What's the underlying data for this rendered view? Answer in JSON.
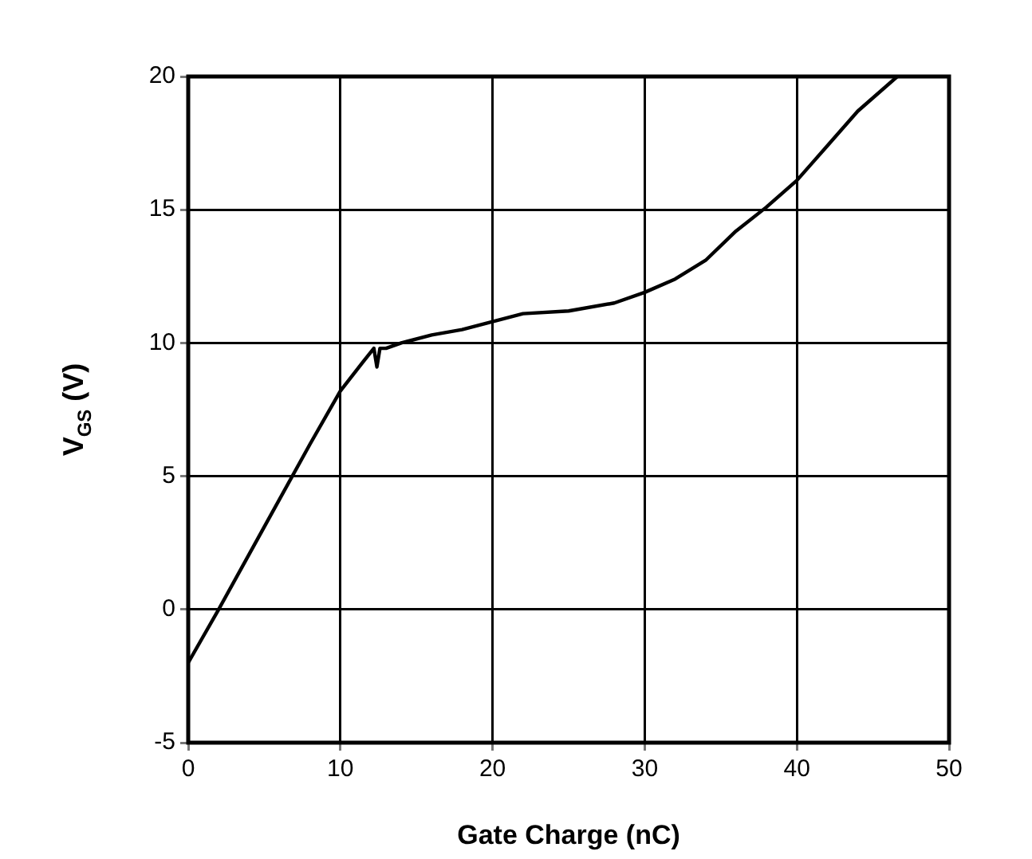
{
  "chart_data": {
    "type": "line",
    "xlabel": "Gate Charge (nC)",
    "ylabel": "V$_{GS}$ (V)",
    "x": [
      0,
      2,
      5,
      8,
      10,
      11.5,
      12.2,
      12.4,
      12.6,
      13,
      14,
      16,
      18,
      20,
      22,
      25,
      28,
      30,
      32,
      34,
      36,
      38,
      40,
      42,
      44,
      46.6
    ],
    "series": [
      {
        "color": "#000000",
        "values": [
          -2,
          0,
          3.1,
          6.2,
          8.2,
          9.3,
          9.8,
          9.1,
          9.8,
          9.8,
          10,
          10.3,
          10.5,
          10.8,
          11.1,
          11.2,
          11.5,
          11.9,
          12.4,
          13.1,
          14.2,
          15.1,
          16.1,
          17.4,
          18.7,
          20
        ]
      }
    ],
    "xlim": [
      0,
      50
    ],
    "xticks": [
      0,
      10,
      20,
      30,
      40,
      50
    ],
    "ylim": [
      -5,
      20
    ],
    "yticks": [
      -5,
      0,
      5,
      10,
      15,
      20
    ],
    "grid": true,
    "legend": false,
    "marker": "none",
    "line_style": "solid"
  }
}
